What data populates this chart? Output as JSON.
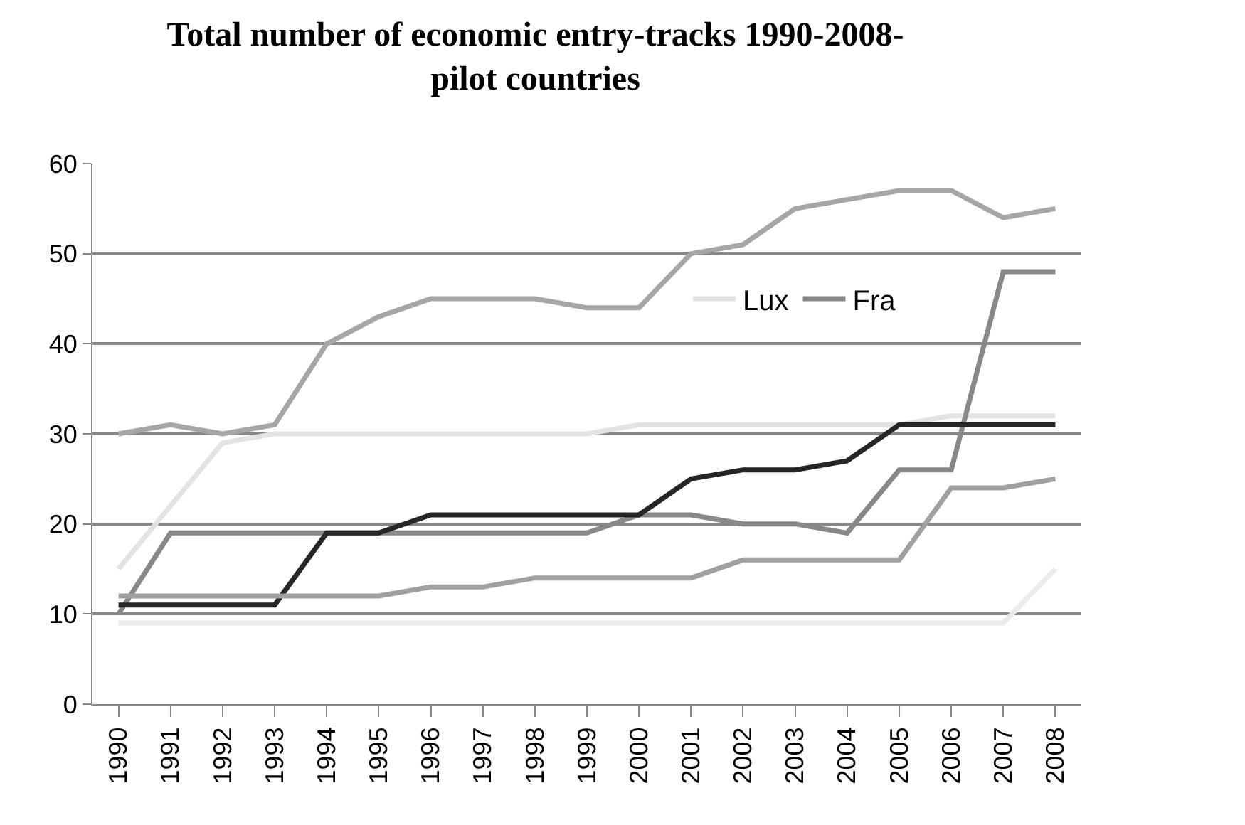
{
  "chart_data": {
    "type": "line",
    "title": "Total number of economic entry-tracks 1990-2008-\npilot countries",
    "categories": [
      "1990",
      "1991",
      "1992",
      "1993",
      "1994",
      "1995",
      "1996",
      "1997",
      "1998",
      "1999",
      "2000",
      "2001",
      "2002",
      "2003",
      "2004",
      "2005",
      "2006",
      "2007",
      "2008"
    ],
    "series": [
      {
        "color": "#a6a6a6",
        "values": [
          30,
          31,
          30,
          31,
          40,
          43,
          45,
          45,
          45,
          44,
          44,
          50,
          51,
          55,
          56,
          57,
          57,
          54,
          55
        ]
      },
      {
        "name": "Lux",
        "color": "#e3e3e3",
        "values": [
          15,
          22,
          29,
          30,
          30,
          30,
          30,
          30,
          30,
          30,
          31,
          31,
          31,
          31,
          31,
          31,
          32,
          32,
          32
        ]
      },
      {
        "name": "Fra",
        "color": "#888888",
        "values": [
          10,
          19,
          19,
          19,
          19,
          19,
          19,
          19,
          19,
          19,
          21,
          21,
          20,
          20,
          19,
          26,
          26,
          48,
          48
        ]
      },
      {
        "color": "#262626",
        "values": [
          11,
          11,
          11,
          11,
          19,
          19,
          21,
          21,
          21,
          21,
          21,
          25,
          26,
          26,
          27,
          31,
          31,
          31,
          31
        ]
      },
      {
        "color": "#a0a0a0",
        "values": [
          12,
          12,
          12,
          12,
          12,
          12,
          13,
          13,
          14,
          14,
          14,
          14,
          16,
          16,
          16,
          16,
          24,
          24,
          25
        ]
      },
      {
        "color": "#ebebeb",
        "values": [
          9,
          9,
          9,
          9,
          9,
          9,
          9,
          9,
          9,
          9,
          9,
          9,
          9,
          9,
          9,
          9,
          9,
          9,
          15
        ]
      }
    ],
    "ylim": [
      0,
      60
    ],
    "yticks": [
      0,
      10,
      20,
      30,
      40,
      50,
      60
    ],
    "grid": "y",
    "legend": "top right",
    "marker": "none",
    "line_style": "solid"
  }
}
